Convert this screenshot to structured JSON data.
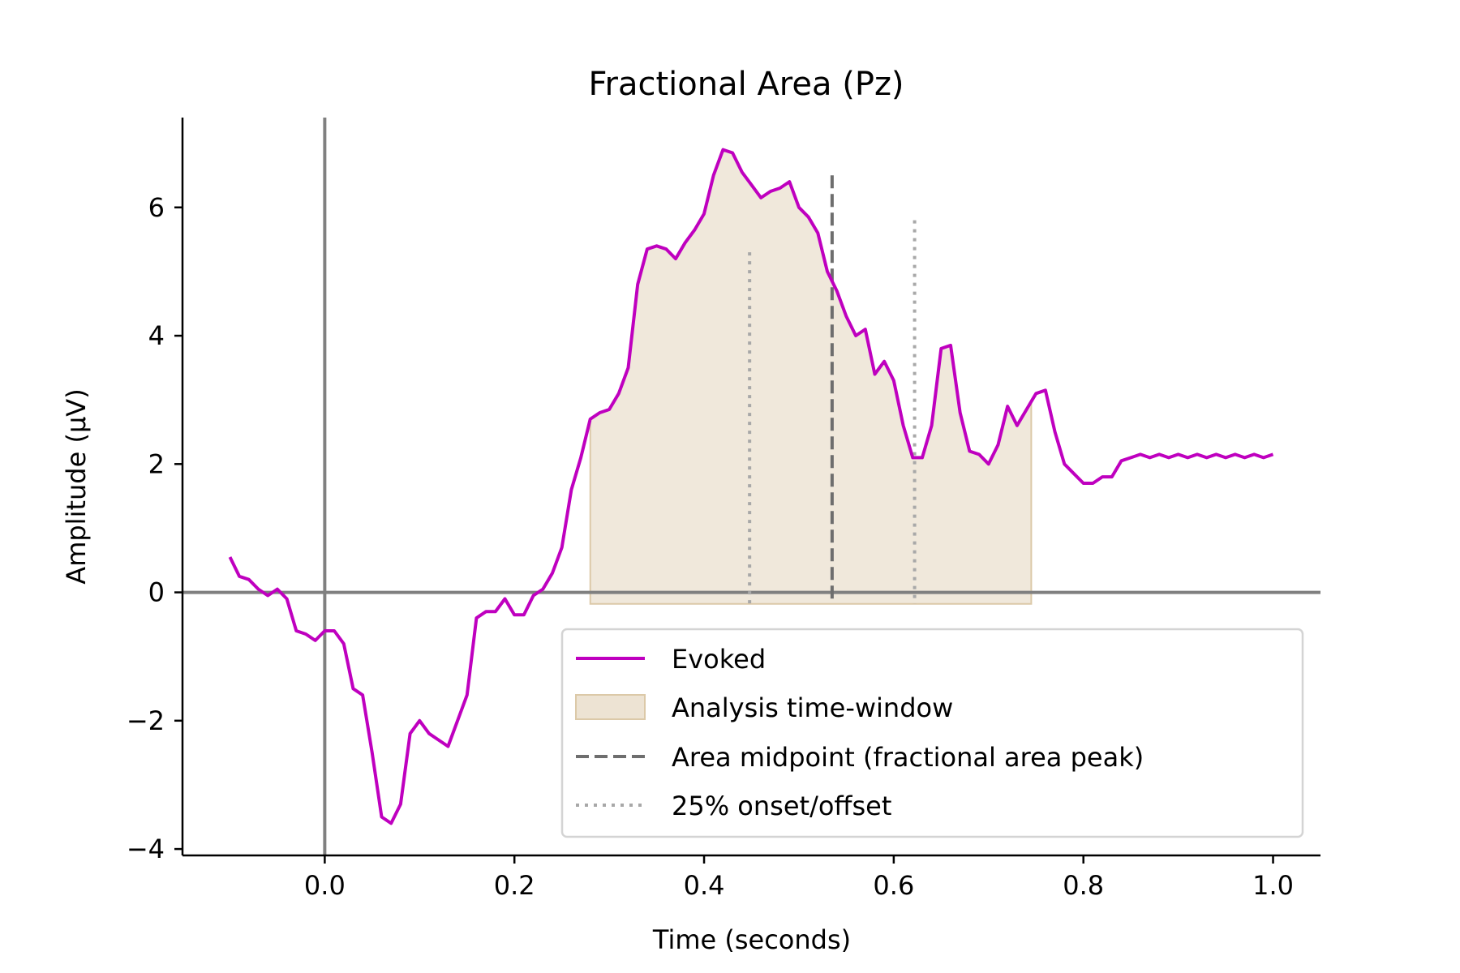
{
  "chart_data": {
    "type": "line",
    "title": "Fractional Area (Pz)",
    "xlabel": "Time (seconds)",
    "ylabel": "Amplitude (µV)",
    "xlim": [
      -0.15,
      1.05
    ],
    "ylim": [
      -4.1,
      7.4
    ],
    "xticks": [
      0.0,
      0.2,
      0.4,
      0.6,
      0.8,
      1.0
    ],
    "xtick_labels": [
      "0.0",
      "0.2",
      "0.4",
      "0.6",
      "0.8",
      "1.0"
    ],
    "yticks": [
      -4,
      -2,
      0,
      2,
      4,
      6
    ],
    "ytick_labels": [
      "−4",
      "−2",
      "0",
      "2",
      "4",
      "6"
    ],
    "grid": false,
    "legend_position": "lower-right",
    "series": [
      {
        "name": "Evoked",
        "color": "#bf00bf",
        "x": [
          -0.1,
          -0.09,
          -0.08,
          -0.07,
          -0.06,
          -0.05,
          -0.04,
          -0.03,
          -0.02,
          -0.01,
          0.0,
          0.01,
          0.02,
          0.03,
          0.04,
          0.05,
          0.06,
          0.07,
          0.08,
          0.09,
          0.1,
          0.11,
          0.12,
          0.13,
          0.14,
          0.15,
          0.16,
          0.17,
          0.18,
          0.19,
          0.2,
          0.21,
          0.22,
          0.23,
          0.24,
          0.25,
          0.26,
          0.27,
          0.28,
          0.29,
          0.3,
          0.31,
          0.32,
          0.33,
          0.34,
          0.35,
          0.36,
          0.37,
          0.38,
          0.39,
          0.4,
          0.41,
          0.42,
          0.43,
          0.44,
          0.45,
          0.46,
          0.47,
          0.48,
          0.49,
          0.5,
          0.51,
          0.52,
          0.53,
          0.54,
          0.55,
          0.56,
          0.57,
          0.58,
          0.59,
          0.6,
          0.61,
          0.62,
          0.63,
          0.64,
          0.65,
          0.66,
          0.67,
          0.68,
          0.69,
          0.7,
          0.71,
          0.72,
          0.73,
          0.74,
          0.75,
          0.76,
          0.77,
          0.78,
          0.79,
          0.8,
          0.81,
          0.82,
          0.83,
          0.84,
          0.85,
          0.86,
          0.87,
          0.88,
          0.89,
          0.9,
          0.91,
          0.92,
          0.93,
          0.94,
          0.95,
          0.96,
          0.97,
          0.98,
          0.99,
          1.0
        ],
        "y": [
          0.55,
          0.25,
          0.2,
          0.05,
          -0.05,
          0.05,
          -0.1,
          -0.6,
          -0.65,
          -0.75,
          -0.6,
          -0.6,
          -0.8,
          -1.5,
          -1.6,
          -2.5,
          -3.5,
          -3.6,
          -3.3,
          -2.2,
          -2.0,
          -2.2,
          -2.3,
          -2.4,
          -2.0,
          -1.6,
          -0.4,
          -0.3,
          -0.3,
          -0.1,
          -0.35,
          -0.35,
          -0.05,
          0.05,
          0.3,
          0.7,
          1.6,
          2.1,
          2.7,
          2.8,
          2.85,
          3.1,
          3.5,
          4.8,
          5.35,
          5.4,
          5.35,
          5.2,
          5.45,
          5.65,
          5.9,
          6.5,
          6.9,
          6.85,
          6.55,
          6.35,
          6.15,
          6.25,
          6.3,
          6.4,
          6.0,
          5.85,
          5.6,
          5.0,
          4.7,
          4.3,
          4.0,
          4.1,
          3.4,
          3.6,
          3.3,
          2.6,
          2.1,
          2.1,
          2.6,
          3.8,
          3.85,
          2.8,
          2.2,
          2.15,
          2.0,
          2.3,
          2.9,
          2.6,
          2.85,
          3.1,
          3.15,
          2.5,
          2.0,
          1.85,
          1.7,
          1.7,
          1.8,
          1.8,
          2.05,
          2.1,
          2.15,
          2.1,
          2.15,
          2.1,
          2.15,
          2.1,
          2.15,
          2.1,
          2.15,
          2.1,
          2.15,
          2.1,
          2.15,
          2.1,
          2.15
        ]
      }
    ],
    "analysis_window": {
      "name": "Analysis time-window",
      "x_start": 0.28,
      "x_end": 0.745,
      "y_bottom": -0.18,
      "color": "#e8dcc8"
    },
    "area_midpoint": {
      "name": "Area midpoint (fractional area peak)",
      "x": 0.535,
      "y_top": 6.5,
      "color": "#777777"
    },
    "onset_offset": {
      "name": "25% onset/offset",
      "x": [
        0.448,
        0.622
      ],
      "y_top": [
        5.3,
        5.8
      ],
      "color": "#aaaaaa"
    },
    "reference_lines": {
      "x0": 0.0,
      "y0": 0.0,
      "color": "#808080"
    }
  }
}
